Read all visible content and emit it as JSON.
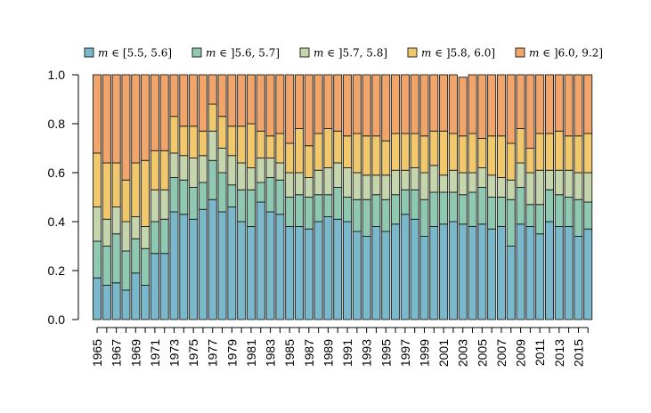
{
  "chart_data": {
    "type": "bar",
    "stacked": true,
    "legend_position": "top",
    "grid": false,
    "title": "",
    "xlabel": "",
    "ylabel": "",
    "ylim": [
      0,
      1
    ],
    "yticks": [
      "0.0",
      "0.2",
      "0.4",
      "0.6",
      "0.8",
      "1.0"
    ],
    "xtick_labels": [
      "1965",
      "1967",
      "1969",
      "1971",
      "1973",
      "1975",
      "1977",
      "1979",
      "1981",
      "1983",
      "1985",
      "1987",
      "1989",
      "1991",
      "1993",
      "1995",
      "1997",
      "1999",
      "2001",
      "2003",
      "2005",
      "2007",
      "2009",
      "2011",
      "2013",
      "2015"
    ],
    "categories": [
      "1965",
      "1966",
      "1967",
      "1968",
      "1969",
      "1970",
      "1971",
      "1972",
      "1973",
      "1974",
      "1975",
      "1976",
      "1977",
      "1978",
      "1979",
      "1980",
      "1981",
      "1982",
      "1983",
      "1984",
      "1985",
      "1986",
      "1987",
      "1988",
      "1989",
      "1990",
      "1991",
      "1992",
      "1993",
      "1994",
      "1995",
      "1996",
      "1997",
      "1998",
      "1999",
      "2000",
      "2001",
      "2002",
      "2003",
      "2004",
      "2005",
      "2006",
      "2007",
      "2008",
      "2009",
      "2010",
      "2011",
      "2012",
      "2013",
      "2014",
      "2015",
      "2016"
    ],
    "series": [
      {
        "name": "m ∈ [5.5, 5.6]",
        "color": "#7ab8cc",
        "values": [
          0.17,
          0.14,
          0.15,
          0.12,
          0.19,
          0.14,
          0.27,
          0.27,
          0.44,
          0.43,
          0.41,
          0.45,
          0.49,
          0.44,
          0.46,
          0.4,
          0.38,
          0.48,
          0.44,
          0.43,
          0.38,
          0.38,
          0.37,
          0.4,
          0.42,
          0.41,
          0.4,
          0.36,
          0.34,
          0.38,
          0.36,
          0.39,
          0.43,
          0.41,
          0.34,
          0.38,
          0.39,
          0.4,
          0.39,
          0.38,
          0.39,
          0.37,
          0.38,
          0.3,
          0.39,
          0.38,
          0.35,
          0.4,
          0.38,
          0.38,
          0.34,
          0.37
        ]
      },
      {
        "name": "m ∈ ]5.6, 5.7]",
        "color": "#8fc9b2",
        "values": [
          0.15,
          0.16,
          0.2,
          0.16,
          0.14,
          0.15,
          0.13,
          0.14,
          0.14,
          0.14,
          0.13,
          0.11,
          0.16,
          0.16,
          0.09,
          0.13,
          0.15,
          0.08,
          0.14,
          0.14,
          0.12,
          0.13,
          0.13,
          0.11,
          0.09,
          0.13,
          0.1,
          0.13,
          0.15,
          0.13,
          0.13,
          0.12,
          0.1,
          0.12,
          0.15,
          0.14,
          0.13,
          0.12,
          0.12,
          0.14,
          0.15,
          0.13,
          0.12,
          0.19,
          0.15,
          0.09,
          0.12,
          0.13,
          0.13,
          0.12,
          0.15,
          0.11
        ]
      },
      {
        "name": "m ∈ ]5.7, 5.8]",
        "color": "#c5d6ad",
        "values": [
          0.14,
          0.11,
          0.11,
          0.12,
          0.09,
          0.09,
          0.13,
          0.12,
          0.1,
          0.1,
          0.12,
          0.11,
          0.12,
          0.1,
          0.12,
          0.11,
          0.09,
          0.1,
          0.08,
          0.07,
          0.1,
          0.09,
          0.08,
          0.1,
          0.11,
          0.1,
          0.12,
          0.11,
          0.1,
          0.08,
          0.1,
          0.1,
          0.08,
          0.09,
          0.11,
          0.11,
          0.07,
          0.09,
          0.09,
          0.08,
          0.08,
          0.09,
          0.08,
          0.08,
          0.1,
          0.13,
          0.14,
          0.08,
          0.1,
          0.11,
          0.11,
          0.12
        ]
      },
      {
        "name": "m ∈ ]5.8, 6.0]",
        "color": "#f1c86b",
        "values": [
          0.22,
          0.23,
          0.18,
          0.17,
          0.22,
          0.27,
          0.16,
          0.16,
          0.15,
          0.12,
          0.13,
          0.1,
          0.11,
          0.13,
          0.12,
          0.15,
          0.18,
          0.11,
          0.09,
          0.12,
          0.12,
          0.18,
          0.13,
          0.15,
          0.16,
          0.13,
          0.13,
          0.16,
          0.16,
          0.16,
          0.14,
          0.15,
          0.15,
          0.14,
          0.15,
          0.14,
          0.18,
          0.15,
          0.15,
          0.16,
          0.12,
          0.16,
          0.17,
          0.15,
          0.14,
          0.1,
          0.15,
          0.15,
          0.16,
          0.14,
          0.15,
          0.16
        ]
      },
      {
        "name": "m ∈ ]6.0, 9.2]",
        "color": "#f1a56a",
        "values": [
          0.32,
          0.36,
          0.36,
          0.43,
          0.36,
          0.35,
          0.31,
          0.31,
          0.17,
          0.21,
          0.21,
          0.23,
          0.12,
          0.17,
          0.21,
          0.21,
          0.2,
          0.23,
          0.25,
          0.24,
          0.28,
          0.22,
          0.29,
          0.24,
          0.22,
          0.23,
          0.25,
          0.24,
          0.25,
          0.25,
          0.27,
          0.24,
          0.24,
          0.24,
          0.25,
          0.23,
          0.23,
          0.24,
          0.24,
          0.24,
          0.26,
          0.25,
          0.25,
          0.28,
          0.22,
          0.3,
          0.24,
          0.24,
          0.23,
          0.25,
          0.25,
          0.24
        ]
      }
    ]
  }
}
